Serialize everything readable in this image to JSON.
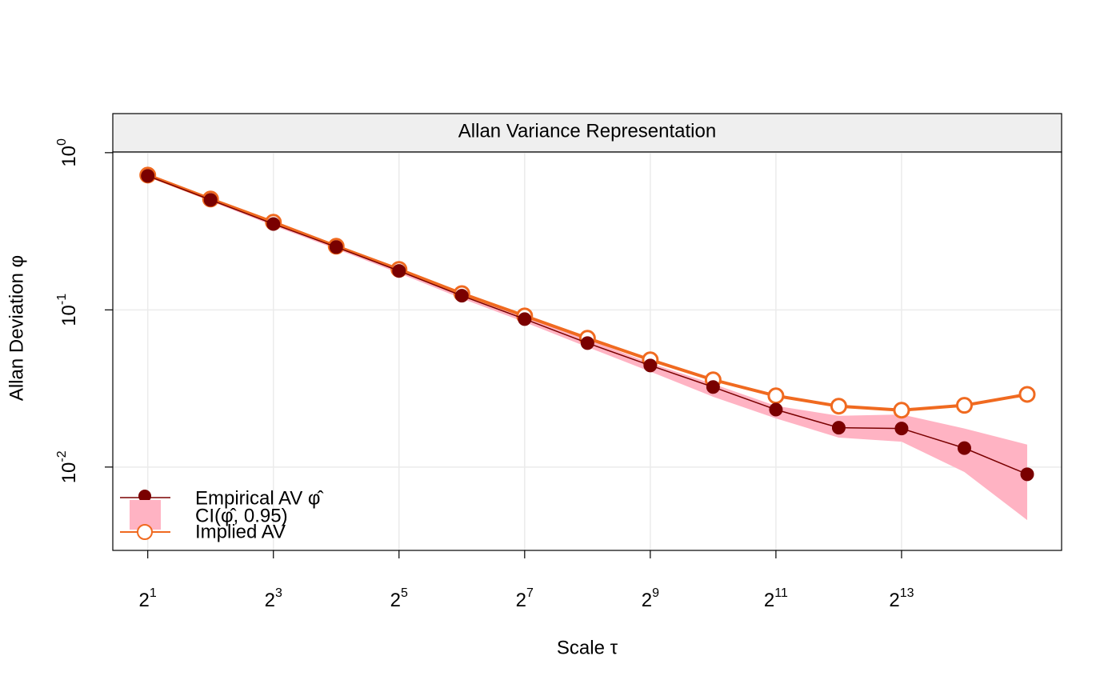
{
  "chart_data": {
    "type": "line",
    "title": "Allan Variance Representation",
    "x_label": "Scale τ",
    "y_label": "Allan Deviation φ",
    "xlog": true,
    "ylog": true,
    "grid": true,
    "legend_position": "bottomleft",
    "x": [
      2,
      4,
      8,
      16,
      32,
      64,
      128,
      256,
      512,
      1024,
      2048,
      4096,
      8192,
      16384,
      32768
    ],
    "xlim": [
      1.36,
      47900
    ],
    "ylim": [
      0.00295,
      1.01
    ],
    "xticks": [
      {
        "value": 2,
        "label": {
          "base": "2",
          "exp": "1"
        }
      },
      {
        "value": 8,
        "label": {
          "base": "2",
          "exp": "3"
        }
      },
      {
        "value": 32,
        "label": {
          "base": "2",
          "exp": "5"
        }
      },
      {
        "value": 128,
        "label": {
          "base": "2",
          "exp": "7"
        }
      },
      {
        "value": 512,
        "label": {
          "base": "2",
          "exp": "9"
        }
      },
      {
        "value": 2048,
        "label": {
          "base": "2",
          "exp": "11"
        }
      },
      {
        "value": 8192,
        "label": {
          "base": "2",
          "exp": "13"
        }
      }
    ],
    "yticks": [
      {
        "value": 1,
        "label": {
          "base": "10",
          "exp": "0"
        }
      },
      {
        "value": 0.1,
        "label": {
          "base": "10",
          "exp": "-1"
        }
      },
      {
        "value": 0.01,
        "label": {
          "base": "10",
          "exp": "-2"
        }
      }
    ],
    "band": {
      "name": "CI(φ̂, 0.95)",
      "color": "#ffb3c3",
      "lower": [
        0.7,
        0.491,
        0.343,
        0.244,
        0.171,
        0.118,
        0.0835,
        0.058,
        0.0405,
        0.028,
        0.0204,
        0.0154,
        0.0145,
        0.0093,
        0.0046
      ],
      "upper": [
        0.724,
        0.511,
        0.361,
        0.259,
        0.183,
        0.128,
        0.0915,
        0.065,
        0.0459,
        0.0338,
        0.0245,
        0.0212,
        0.0216,
        0.0176,
        0.0139
      ]
    },
    "series": [
      {
        "name": "Empirical AV φ̂",
        "color": "#7a0000",
        "marker": "filled",
        "values": [
          0.712,
          0.501,
          0.352,
          0.251,
          0.177,
          0.123,
          0.0874,
          0.0615,
          0.0443,
          0.0323,
          0.0232,
          0.0178,
          0.0176,
          0.0132,
          0.009
        ]
      },
      {
        "name": "Implied AV",
        "color": "#f06a20",
        "marker": "open",
        "values": [
          0.72,
          0.507,
          0.361,
          0.254,
          0.181,
          0.127,
          0.0916,
          0.066,
          0.0481,
          0.0359,
          0.0284,
          0.0244,
          0.023,
          0.0247,
          0.029
        ]
      }
    ]
  }
}
